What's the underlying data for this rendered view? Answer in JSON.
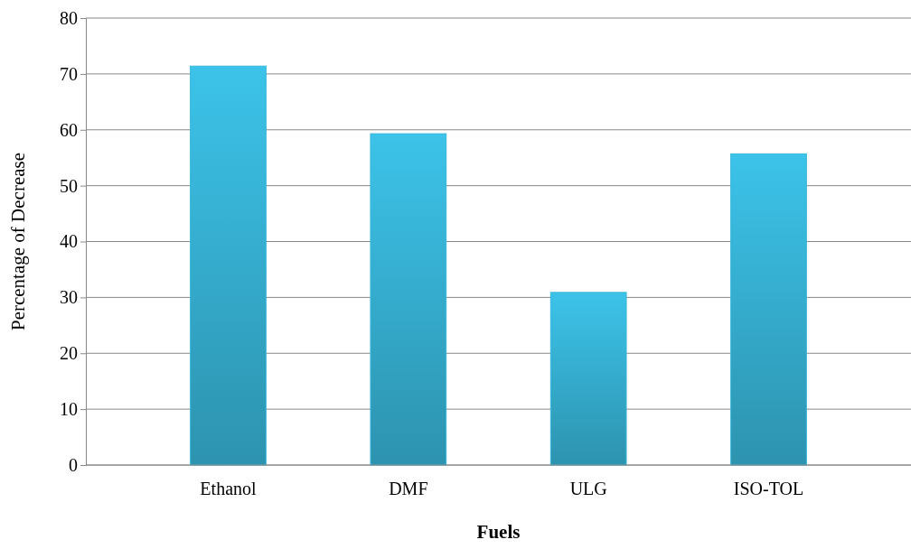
{
  "chart_data": {
    "type": "bar",
    "xlabel": "Fuels",
    "ylabel": "Percentage of Decrease",
    "categories": [
      "Ethanol",
      "DMF",
      "ULG",
      "ISO-TOL"
    ],
    "values": [
      71.4,
      59.3,
      30.9,
      55.7
    ],
    "color": "#38b6d9",
    "ylim": [
      0,
      80
    ],
    "yticks": [
      0,
      10,
      20,
      30,
      40,
      50,
      60,
      70,
      80
    ],
    "grid": "y"
  }
}
